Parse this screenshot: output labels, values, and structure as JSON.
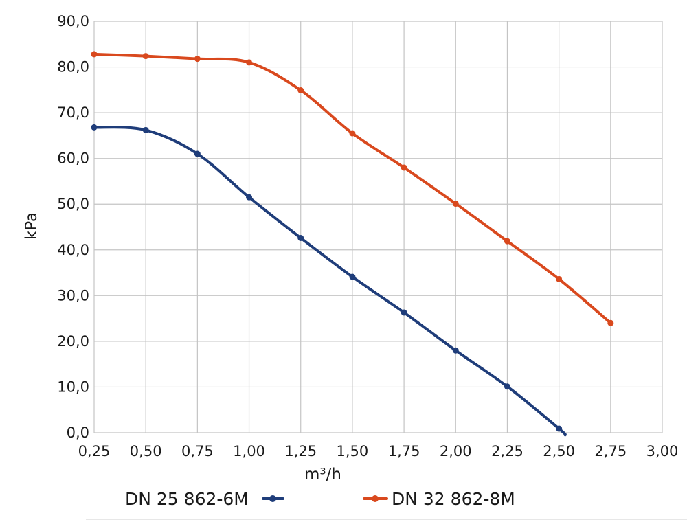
{
  "chart_data": {
    "type": "line",
    "xlabel": "m³/h",
    "ylabel": "kPa",
    "xlim": [
      0.25,
      3.0
    ],
    "ylim": [
      0,
      90
    ],
    "x_ticks": [
      "0,25",
      "0,50",
      "0,75",
      "1,00",
      "1,25",
      "1,50",
      "1,75",
      "2,00",
      "2,25",
      "2,50",
      "2,75",
      "3,00"
    ],
    "y_ticks": [
      "0,0",
      "10,0",
      "20,0",
      "30,0",
      "40,0",
      "50,0",
      "60,0",
      "70,0",
      "80,0",
      "90,0"
    ],
    "grid": true,
    "legend_position": "bottom",
    "series": [
      {
        "name": "DN 25 862-6M",
        "color": "#1f3d7a",
        "x": [
          0.25,
          0.5,
          0.75,
          1.0,
          1.25,
          1.5,
          1.75,
          2.0,
          2.25,
          2.5
        ],
        "values": [
          66.8,
          66.2,
          61.0,
          51.5,
          42.6,
          34.1,
          26.3,
          18.0,
          10.1,
          0.9
        ],
        "line_end": {
          "x": 2.53,
          "y": -0.5
        }
      },
      {
        "name": "DN 32 862-8M",
        "color": "#d9491e",
        "x": [
          0.25,
          0.5,
          0.75,
          1.0,
          1.25,
          1.5,
          1.75,
          2.0,
          2.25,
          2.5,
          2.75
        ],
        "values": [
          82.8,
          82.4,
          81.8,
          81.0,
          74.9,
          65.5,
          58.0,
          50.1,
          41.9,
          33.6,
          24.0
        ]
      }
    ]
  }
}
